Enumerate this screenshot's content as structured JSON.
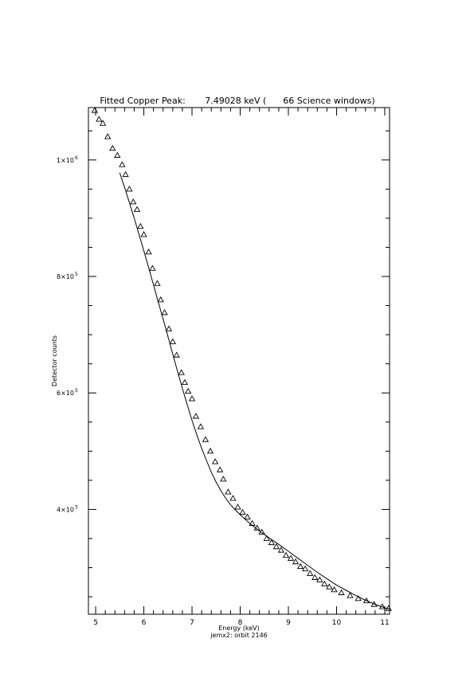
{
  "chart_data": {
    "type": "scatter",
    "title": "Fitted Copper Peak:       7.49028 keV (      66 Science windows)",
    "xlabel": "Energy (keV)",
    "ylabel": "Detector counts",
    "caption": "jemx2: orbit 2146",
    "xlim": [
      4.85,
      11.1
    ],
    "ylim": [
      220000,
      1090000
    ],
    "x_ticks": [
      {
        "value": 5,
        "label": "5"
      },
      {
        "value": 6,
        "label": "6"
      },
      {
        "value": 7,
        "label": "7"
      },
      {
        "value": 8,
        "label": "8"
      },
      {
        "value": 9,
        "label": "9"
      },
      {
        "value": 10,
        "label": "10"
      },
      {
        "value": 11,
        "label": "11"
      }
    ],
    "y_ticks": [
      {
        "value": 400000,
        "mantissa": "4×10",
        "exponent": "5"
      },
      {
        "value": 600000,
        "mantissa": "6×10",
        "exponent": "5"
      },
      {
        "value": 800000,
        "mantissa": "8×10",
        "exponent": "5"
      },
      {
        "value": 1000000,
        "mantissa": "1×10",
        "exponent": "6"
      }
    ],
    "grid": false,
    "series": [
      {
        "marker": "triangle",
        "x": [
          4.98,
          5.07,
          5.15,
          5.25,
          5.35,
          5.45,
          5.55,
          5.62,
          5.7,
          5.78,
          5.86,
          5.93,
          6.0,
          6.1,
          6.18,
          6.28,
          6.35,
          6.43,
          6.52,
          6.6,
          6.68,
          6.78,
          6.85,
          6.92,
          7.0,
          7.08,
          7.18,
          7.28,
          7.38,
          7.48,
          7.58,
          7.65,
          7.75,
          7.85,
          7.95,
          8.05,
          8.15,
          8.25,
          8.35,
          8.45,
          8.55,
          8.65,
          8.75,
          8.85,
          8.95,
          9.05,
          9.15,
          9.25,
          9.35,
          9.45,
          9.55,
          9.65,
          9.75,
          9.85,
          9.95,
          10.1,
          10.28,
          10.45,
          10.62,
          10.78,
          10.95,
          11.08
        ],
        "y": [
          1085000,
          1070000,
          1063000,
          1040000,
          1020000,
          1008000,
          992000,
          975000,
          950000,
          928000,
          915000,
          886000,
          872000,
          842000,
          814000,
          788000,
          760000,
          738000,
          710000,
          688000,
          665000,
          635000,
          618000,
          603000,
          590000,
          560000,
          542000,
          520000,
          500000,
          482000,
          468000,
          452000,
          430000,
          419000,
          404000,
          395000,
          387000,
          376000,
          368000,
          361000,
          350000,
          343000,
          336000,
          330000,
          321000,
          316000,
          310000,
          302000,
          298000,
          290000,
          283000,
          279000,
          272000,
          267000,
          262000,
          257000,
          252000,
          247000,
          243000,
          237000,
          233000,
          230000
        ]
      },
      {
        "line": "fit",
        "x": [
          5.5,
          5.6,
          5.7,
          5.8,
          5.9,
          6.0,
          6.1,
          6.2,
          6.3,
          6.4,
          6.5,
          6.6,
          6.7,
          6.8,
          6.9,
          7.0,
          7.1,
          7.2,
          7.3,
          7.4,
          7.5,
          7.6,
          7.7,
          7.8,
          7.9,
          8.0,
          8.2,
          8.4,
          8.6,
          8.8,
          9.0,
          9.2,
          9.4,
          9.6,
          9.8,
          10.0,
          10.2,
          10.4,
          10.6,
          10.8,
          11.0,
          11.1
        ],
        "y": [
          978000,
          953000,
          927000,
          900000,
          872000,
          844000,
          815000,
          786000,
          756000,
          727000,
          697000,
          667000,
          637000,
          608000,
          580000,
          553000,
          528000,
          505000,
          484000,
          464000,
          447000,
          432000,
          419000,
          408000,
          399000,
          391000,
          376000,
          363000,
          351000,
          340000,
          328000,
          316000,
          304000,
          292000,
          281000,
          270000,
          261000,
          252000,
          244000,
          237000,
          231000,
          229000
        ]
      }
    ]
  }
}
